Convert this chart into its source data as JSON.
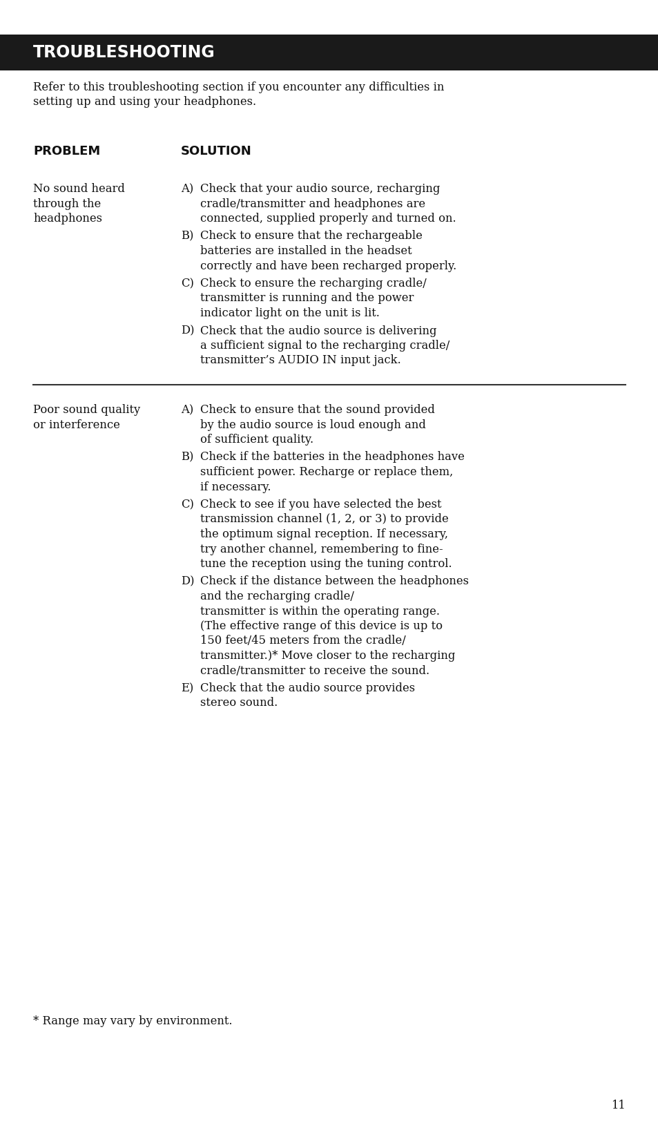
{
  "title": "TROUBLESHOOTING",
  "title_bg": "#1a1a1a",
  "title_color": "#ffffff",
  "intro_lines": [
    "Refer to this troubleshooting section if you encounter any difficulties in",
    "setting up and using your headphones."
  ],
  "col1_header": "PROBLEM",
  "col2_header": "SOLUTION",
  "problem1": [
    "No sound heard",
    "through the",
    "headphones"
  ],
  "problem1_solutions": [
    [
      "A)",
      "Check that your audio source, recharging",
      "cradle/transmitter and headphones are",
      "connected, supplied properly and turned on."
    ],
    [
      "B)",
      "Check to ensure that the rechargeable",
      "batteries are installed in the headset",
      "correctly and have been recharged properly."
    ],
    [
      "C)",
      "Check to ensure the recharging cradle/",
      "transmitter is running and the power",
      "indicator light on the unit is lit."
    ],
    [
      "D)",
      "Check that the audio source is delivering",
      "a sufficient signal to the recharging cradle/",
      "transmitter’s AUDIO IN input jack."
    ]
  ],
  "problem2": [
    "Poor sound quality",
    "or interference"
  ],
  "problem2_solutions": [
    [
      "A)",
      "Check to ensure that the sound provided",
      "by the audio source is loud enough and",
      "of sufficient quality."
    ],
    [
      "B)",
      "Check if the batteries in the headphones have",
      "sufficient power. Recharge or replace them,",
      "if necessary."
    ],
    [
      "C)",
      "Check to see if you have selected the best",
      "transmission channel (1, 2, or 3) to provide",
      "the optimum signal reception. If necessary,",
      "try another channel, remembering to fine-",
      "tune the reception using the tuning control."
    ],
    [
      "D)",
      "Check if the distance between the headphones",
      "and the recharging cradle/",
      "transmitter is within the operating range.",
      "(The effective range of this device is up to",
      "150 feet/45 meters from the cradle/",
      "transmitter.)* Move closer to the recharging",
      "cradle/transmitter to receive the sound."
    ],
    [
      "E)",
      "Check that the audio source provides",
      "stereo sound."
    ]
  ],
  "footnote": "* Range may vary by environment.",
  "page_number": "11",
  "bg_color": "#ffffff",
  "text_color": "#111111",
  "title_font_size": 17,
  "body_font_size": 11.8,
  "header_font_size": 13
}
